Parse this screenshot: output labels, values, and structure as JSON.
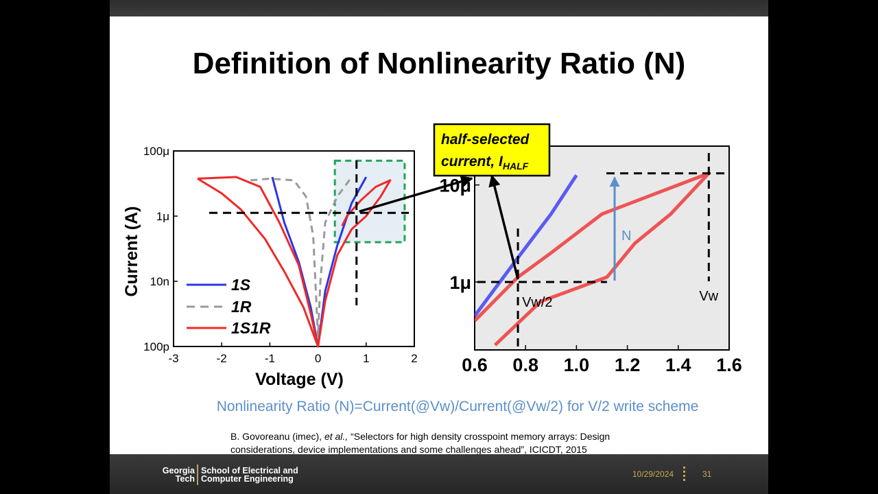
{
  "slide": {
    "title": "Definition of Nonlinearity Ratio (N)",
    "formula": "Nonlinearity Ratio (N)=Current(@Vw)/Current(@Vw/2) for V/2 write scheme",
    "citation_authors": "B. Govoreanu (imec), ",
    "citation_etal": "et al.,",
    "citation_line1_rest": " “Selectors for high density crosspoint memory arrays: Design",
    "citation_line2": "considerations, device implementations and some challenges ahead”, ICICDT, 2015",
    "callout_line1": "half-selected",
    "callout_line2": "current, I",
    "callout_subscript": "HALF",
    "footer": {
      "logo_line1": "Georgia",
      "logo_line2": "Tech",
      "school_line1": "School of Electrical and",
      "school_line2": "Computer Engineering",
      "date": "10/29/2024",
      "page": "31"
    },
    "colors": {
      "blue": "#2b35e8",
      "red": "#ee2a2a",
      "gray": "#9a9a9a",
      "formula": "#5b8fc9",
      "callout": "#ffff00",
      "zoom_box": "#21a35a"
    }
  },
  "chart_data": [
    {
      "type": "line",
      "xlabel": "Voltage (V)",
      "ylabel": "Current (A)",
      "xlim": [
        -3,
        2
      ],
      "ylim_log10": [
        -10,
        -4
      ],
      "x_ticks": [
        "-3",
        "-2",
        "-1",
        "0",
        "1",
        "2"
      ],
      "y_ticks": [
        "100μ",
        "1μ",
        "10n",
        "100p"
      ],
      "y_tick_values": [
        -4,
        -6,
        -8,
        -10
      ],
      "legend_position": "bottom-left",
      "series": [
        {
          "name": "1S",
          "style": "solid",
          "color": "#2b35e8",
          "points": [
            [
              -0.95,
              -4.8
            ],
            [
              -0.7,
              -6.2
            ],
            [
              -0.4,
              -7.4
            ],
            [
              -0.15,
              -8.8
            ],
            [
              0,
              -10
            ],
            [
              0.15,
              -8.3
            ],
            [
              0.4,
              -6.9
            ],
            [
              0.7,
              -5.6
            ],
            [
              1.0,
              -4.8
            ]
          ]
        },
        {
          "name": "1R",
          "style": "dashed",
          "color": "#9a9a9a",
          "points": [
            [
              -1.4,
              -4.9
            ],
            [
              -1.0,
              -4.85
            ],
            [
              -0.5,
              -4.9
            ],
            [
              -0.25,
              -5.4
            ],
            [
              -0.1,
              -6.6
            ],
            [
              0,
              -9.7
            ],
            [
              0.05,
              -8.0
            ],
            [
              0.15,
              -6.2
            ],
            [
              0.4,
              -5.4
            ],
            [
              0.7,
              -4.8
            ]
          ]
        },
        {
          "name": "1S1R",
          "style": "solid",
          "color": "#ee2a2a",
          "points": [
            [
              -2.5,
              -4.85
            ],
            [
              -1.7,
              -4.8
            ],
            [
              -1.2,
              -5.1
            ],
            [
              -0.8,
              -6.2
            ],
            [
              -0.4,
              -7.5
            ],
            [
              -0.15,
              -9.0
            ],
            [
              0,
              -10
            ],
            [
              0.15,
              -8.6
            ],
            [
              0.4,
              -7.2
            ],
            [
              0.7,
              -6.4
            ],
            [
              1.0,
              -6.0
            ],
            [
              1.3,
              -5.4
            ],
            [
              1.5,
              -4.9
            ],
            [
              1.2,
              -5.1
            ],
            [
              0.9,
              -5.5
            ],
            [
              0.6,
              -6.0
            ],
            [
              0.5,
              -6.3
            ]
          ],
          "loop_points": [
            [
              -2.5,
              -4.85
            ],
            [
              -2.0,
              -5.3
            ],
            [
              -1.6,
              -5.8
            ],
            [
              -1.1,
              -6.7
            ],
            [
              -0.7,
              -7.7
            ],
            [
              -0.3,
              -8.8
            ],
            [
              0,
              -10
            ]
          ]
        }
      ],
      "guides": {
        "horizontal_log10": -5.9,
        "vertical_x": 0.8
      },
      "zoom_box": {
        "x": [
          0.35,
          1.8
        ],
        "y_log10": [
          -4.3,
          -6.8
        ]
      }
    },
    {
      "type": "line",
      "xlim": [
        0.6,
        1.6
      ],
      "ylim_log10": [
        -6.7,
        -4.6
      ],
      "x_ticks": [
        "0.6",
        "0.8",
        "1.0",
        "1.2",
        "1.4",
        "1.6"
      ],
      "y_ticks": [
        "10μ",
        "1μ"
      ],
      "y_tick_values": [
        -5,
        -6
      ],
      "series": [
        {
          "name": "",
          "color": "#4a4af5",
          "points": [
            [
              0.6,
              -6.35
            ],
            [
              0.77,
              -5.75
            ],
            [
              0.9,
              -5.3
            ],
            [
              1.0,
              -4.9
            ]
          ]
        },
        {
          "name": "",
          "color": "#ee4444",
          "points": [
            [
              0.6,
              -6.4
            ],
            [
              0.77,
              -5.95
            ],
            [
              0.9,
              -5.7
            ],
            [
              1.1,
              -5.3
            ],
            [
              1.3,
              -5.1
            ],
            [
              1.52,
              -4.88
            ],
            [
              1.37,
              -5.3
            ],
            [
              1.23,
              -5.6
            ],
            [
              1.12,
              -5.95
            ],
            [
              0.86,
              -6.2
            ],
            [
              0.68,
              -6.65
            ]
          ]
        }
      ],
      "annotations": {
        "half_v_label": "Vw/2",
        "vw_label": "Vw",
        "n_label": "N",
        "vhalf_x": 0.77,
        "vw_x": 1.52,
        "i_half_log10": -6.0,
        "i_vw_log10": -4.88,
        "n_arrow_x": 1.15
      }
    }
  ]
}
